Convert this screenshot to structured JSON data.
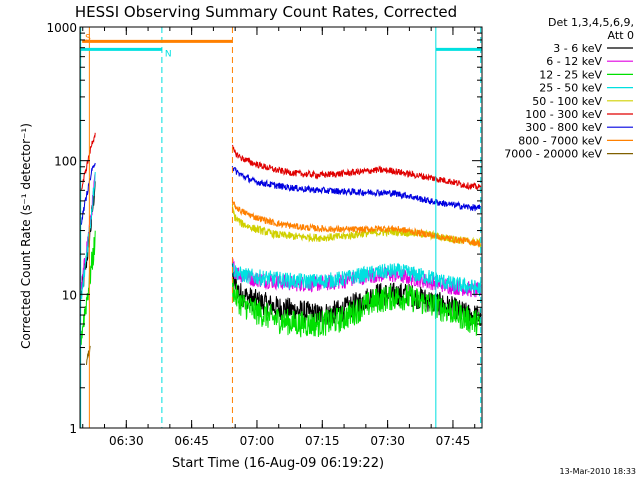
{
  "chart_data": {
    "type": "line",
    "title": "HESSI Observing Summary Count Rates, Corrected",
    "xlabel": "Start Time (16-Aug-09 06:19:22)",
    "ylabel": "Corrected Count Rate (s⁻¹ detector⁻¹)",
    "ylog": true,
    "ylim": [
      1,
      1000
    ],
    "xlim_minutes_after_start": [
      0,
      92.3
    ],
    "y_ticks": [
      {
        "value": 1,
        "label": "1"
      },
      {
        "value": 10,
        "label": "10"
      },
      {
        "value": 100,
        "label": "100"
      },
      {
        "value": 1000,
        "label": "1000"
      }
    ],
    "x_ticks": [
      {
        "value": 10.63,
        "label": "06:30"
      },
      {
        "value": 25.63,
        "label": "06:45"
      },
      {
        "value": 40.63,
        "label": "07:00"
      },
      {
        "value": 55.63,
        "label": "07:15"
      },
      {
        "value": 70.63,
        "label": "07:30"
      },
      {
        "value": 85.63,
        "label": "07:45"
      }
    ],
    "legend_header": [
      "Det 1,3,4,5,6,9,",
      "Att 0"
    ],
    "legend_position": "right",
    "series": [
      {
        "name": "3 - 6 keV",
        "color": "#000000",
        "x": [
          0.3,
          1.5,
          2.6,
          3.5,
          35.0,
          35.5,
          37,
          40,
          45,
          50,
          55,
          60,
          65,
          68,
          72,
          75,
          80,
          85,
          89,
          92
        ],
        "y": [
          10,
          18,
          35,
          70,
          14,
          12,
          10,
          9,
          8,
          7.5,
          7,
          7.5,
          9,
          10,
          10,
          10,
          9,
          8,
          7,
          6.8
        ]
      },
      {
        "name": "6 - 12 keV",
        "color": "#e000e0",
        "x": [
          0.3,
          1.5,
          2.6,
          3.5,
          35.0,
          35.5,
          37,
          40,
          45,
          50,
          55,
          60,
          65,
          68,
          72,
          75,
          80,
          85,
          89,
          92
        ],
        "y": [
          11,
          22,
          40,
          75,
          17,
          15,
          14,
          13,
          12.5,
          12,
          12,
          12.5,
          13.5,
          14,
          14,
          13.5,
          12.5,
          11.5,
          11,
          10.5
        ]
      },
      {
        "name": "12 - 25 keV",
        "color": "#00e000",
        "x": [
          0.3,
          1.5,
          2.6,
          3.5,
          35.0,
          35.5,
          37,
          40,
          45,
          50,
          55,
          60,
          65,
          68,
          72,
          75,
          80,
          85,
          89,
          92
        ],
        "y": [
          5,
          9,
          16,
          25,
          12,
          10,
          8.5,
          7.5,
          6.5,
          6,
          6,
          6.5,
          8,
          9,
          9.5,
          9.5,
          8.5,
          7.5,
          6.5,
          6
        ]
      },
      {
        "name": "25 - 50 keV",
        "color": "#00e0e0",
        "x": [
          0.3,
          1.5,
          2.6,
          3.5,
          35.0,
          35.5,
          37,
          40,
          45,
          50,
          55,
          60,
          65,
          68,
          72,
          75,
          80,
          85,
          89,
          92
        ],
        "y": [
          9,
          20,
          40,
          80,
          16,
          15,
          14,
          13.5,
          13,
          12.5,
          12.5,
          13,
          14,
          14.5,
          15,
          14.5,
          13.5,
          12,
          11.5,
          11
        ]
      },
      {
        "name": "50 - 100 keV",
        "color": "#d0d000",
        "x": [
          35.0,
          35.5,
          37,
          40,
          45,
          50,
          55,
          60,
          65,
          68,
          72,
          75,
          80,
          85,
          89,
          92
        ],
        "y": [
          45,
          38,
          34,
          31,
          28,
          27,
          26.5,
          27,
          28.5,
          29,
          29.5,
          29,
          28,
          26,
          25,
          24
        ]
      },
      {
        "name": "100 - 300 keV",
        "color": "#e00000",
        "x": [
          0.3,
          1.5,
          2.6,
          3.5,
          35.0,
          35.5,
          37,
          40,
          45,
          50,
          55,
          60,
          65,
          68,
          72,
          75,
          80,
          85,
          89,
          92
        ],
        "y": [
          60,
          90,
          130,
          160,
          125,
          115,
          105,
          95,
          85,
          80,
          78,
          80,
          83,
          85,
          84,
          80,
          75,
          70,
          65,
          63
        ]
      },
      {
        "name": "300 - 800 keV",
        "color": "#0000e0",
        "x": [
          0.3,
          1.5,
          2.6,
          3.5,
          35.0,
          35.5,
          37,
          40,
          45,
          50,
          55,
          60,
          65,
          68,
          72,
          75,
          80,
          85,
          89,
          92
        ],
        "y": [
          35,
          55,
          80,
          100,
          90,
          85,
          78,
          70,
          65,
          62,
          60,
          59,
          58,
          58,
          57,
          55,
          50,
          47,
          45,
          44
        ]
      },
      {
        "name": "800 - 7000 keV",
        "color": "#ff8000",
        "x": [
          35.0,
          35.5,
          37,
          40,
          45,
          50,
          55,
          60,
          65,
          68,
          72,
          75,
          80,
          85,
          89,
          92
        ],
        "y": [
          50,
          46,
          42,
          38,
          34,
          32,
          31,
          30.5,
          30.5,
          31,
          31,
          30,
          28,
          26,
          25,
          24
        ]
      },
      {
        "name": "7000 - 20000 keV",
        "color": "#806000",
        "x": [
          1.5,
          2.4
        ],
        "y": [
          3,
          4
        ]
      }
    ],
    "flags": [
      {
        "label": "S",
        "color": "#ff8000",
        "y": 780,
        "x_range": [
          0.5,
          35.0
        ]
      },
      {
        "label": "N",
        "color": "#00e0e0",
        "y": 680,
        "x_range": [
          0.0,
          18.8
        ]
      },
      {
        "label": "",
        "color": "#00e0e0",
        "y": 680,
        "x_range": [
          81.7,
          92.3
        ]
      }
    ],
    "vlines": [
      {
        "x": 0.15,
        "color": "#00e0e0",
        "style": "solid"
      },
      {
        "x": 2.15,
        "color": "#ff8000",
        "style": "solid"
      },
      {
        "x": 18.8,
        "color": "#00e0e0",
        "style": "dashed"
      },
      {
        "x": 35.0,
        "color": "#ff8000",
        "style": "dashed"
      },
      {
        "x": 81.7,
        "color": "#00e0e0",
        "style": "solid"
      },
      {
        "x": 92.0,
        "color": "#00e0e0",
        "style": "dashed"
      }
    ],
    "footer_timestamp": "13-Mar-2010 18:33"
  }
}
